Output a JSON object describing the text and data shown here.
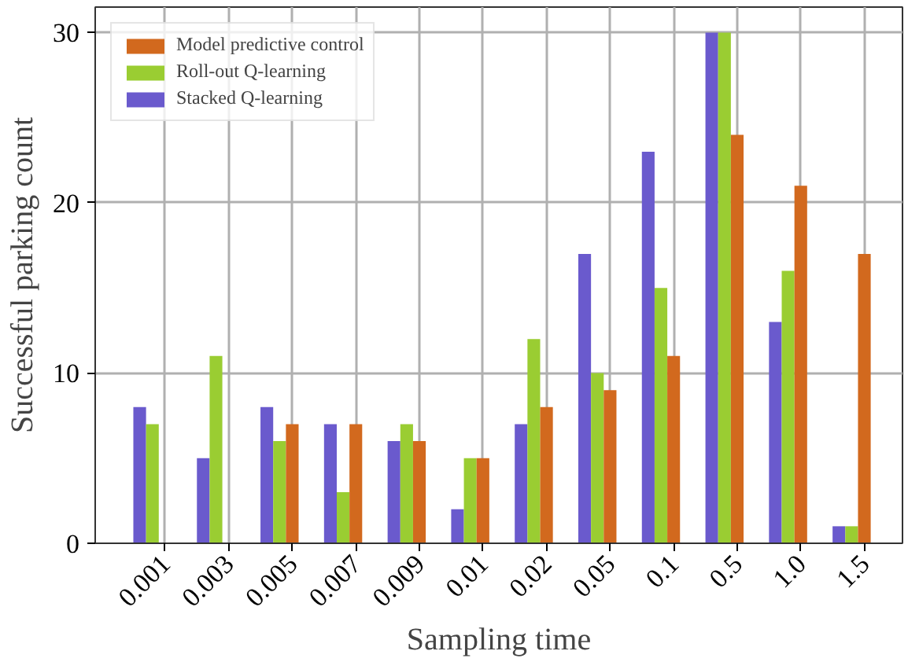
{
  "chart_data": {
    "type": "bar",
    "xlabel": "Sampling time",
    "ylabel": "Successful parking count",
    "categories": [
      "0.001",
      "0.003",
      "0.005",
      "0.007",
      "0.009",
      "0.01",
      "0.02",
      "0.05",
      "0.1",
      "0.5",
      "1.0",
      "1.5"
    ],
    "series": [
      {
        "name": "Stacked Q-learning",
        "color": "#6a5acd",
        "values": [
          8,
          5,
          8,
          7,
          6,
          2,
          7,
          17,
          23,
          30,
          13,
          1
        ]
      },
      {
        "name": "Roll-out Q-learning",
        "color": "#9acd32",
        "values": [
          7,
          11,
          6,
          3,
          7,
          5,
          12,
          10,
          15,
          30,
          16,
          1
        ]
      },
      {
        "name": "Model predictive control",
        "color": "#d2691e",
        "values": [
          0,
          0,
          7,
          7,
          6,
          5,
          8,
          9,
          11,
          24,
          21,
          17
        ]
      }
    ],
    "ylim": [
      0,
      31.5
    ],
    "yticks": [
      0,
      10,
      20,
      30
    ],
    "grid": true,
    "legend": "top left"
  }
}
